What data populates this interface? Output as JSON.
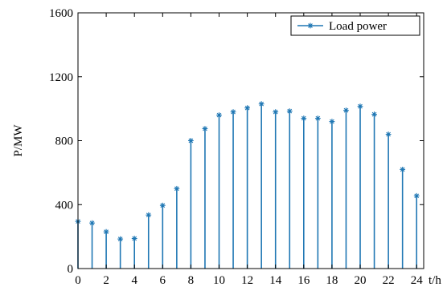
{
  "chart_data": {
    "type": "stem",
    "title": "",
    "xlabel": "t/h",
    "ylabel": "P/MW",
    "xlim": [
      0,
      24.5
    ],
    "ylim": [
      0,
      1600
    ],
    "xticks": [
      0,
      2,
      4,
      6,
      8,
      10,
      12,
      14,
      16,
      18,
      20,
      22,
      24
    ],
    "yticks": [
      0,
      400,
      800,
      1200,
      1600
    ],
    "grid": false,
    "legend_position": "top-right",
    "colors": {
      "series": "#1f77b4",
      "axis": "#000000"
    },
    "series": [
      {
        "name": "Load power",
        "marker": "asterisk",
        "x": [
          0,
          1,
          2,
          3,
          4,
          5,
          6,
          7,
          8,
          9,
          10,
          11,
          12,
          13,
          14,
          15,
          16,
          17,
          18,
          19,
          20,
          21,
          22,
          23,
          24
        ],
        "values": [
          295,
          285,
          230,
          185,
          188,
          335,
          395,
          500,
          800,
          875,
          960,
          980,
          1005,
          1030,
          980,
          985,
          940,
          940,
          920,
          990,
          1015,
          965,
          840,
          620,
          455
        ]
      }
    ]
  }
}
